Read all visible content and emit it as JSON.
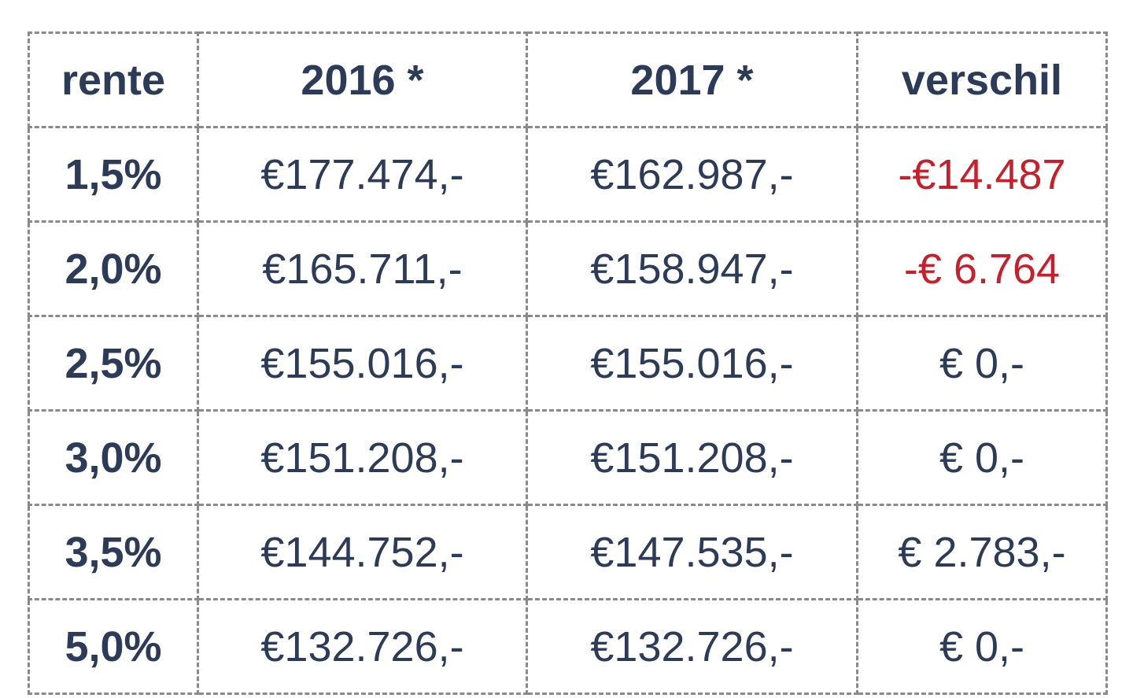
{
  "table": {
    "headers": [
      "rente",
      "2016 *",
      "2017 *",
      "verschil"
    ],
    "rows": [
      [
        "1,5%",
        "€177.474,-",
        "€162.987,-",
        "-€14.487"
      ],
      [
        "2,0%",
        "€165.711,-",
        "€158.947,-",
        "-€ 6.764"
      ],
      [
        "2,5%",
        "€155.016,-",
        "€155.016,-",
        "€ 0,-"
      ],
      [
        "3,0%",
        "€151.208,-",
        "€151.208,-",
        "€ 0,-"
      ],
      [
        "3,5%",
        "€144.752,-",
        "€147.535,-",
        "€ 2.783,-"
      ],
      [
        "5,0%",
        "€132.726,-",
        "€132.726,-",
        "€ 0,-"
      ]
    ]
  }
}
